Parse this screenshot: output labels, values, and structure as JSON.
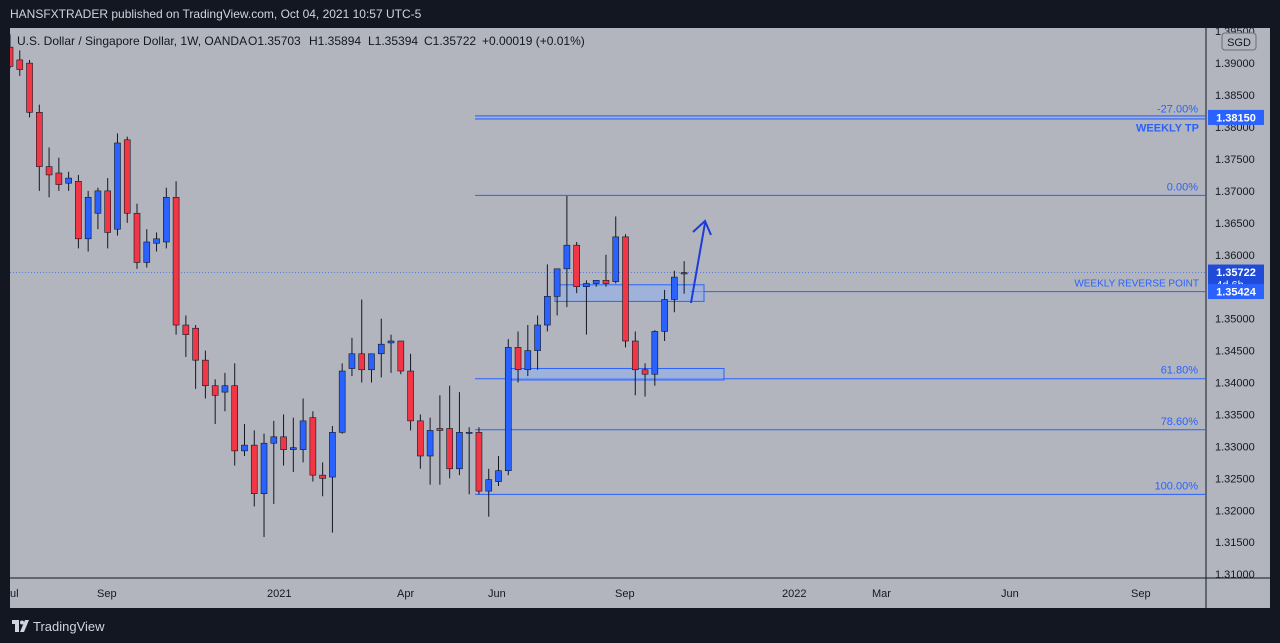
{
  "header": {
    "publisher_line": "HANSFXTRADER published on TradingView.com, Oct 04, 2021 10:57 UTC-5"
  },
  "legend": {
    "symbol": "U.S. Dollar / Singapore Dollar, 1W, OANDA",
    "open": "O1.35703",
    "high": "H1.35894",
    "low": "L1.35394",
    "close": "C1.35722",
    "change": "+0.00019 (+0.01%)"
  },
  "currency_button": "SGD",
  "footer": {
    "brand": "TradingView"
  },
  "colors": {
    "up": "#2962ff",
    "down": "#f23645",
    "line": "#2962ff",
    "pane_bg": "#b2b5be",
    "zone_fill": "#8fb0f0"
  },
  "chart_data": {
    "type": "candlestick",
    "title": "U.S. Dollar / Singapore Dollar, 1W, OANDA",
    "ylim": [
      1.3094,
      1.3955
    ],
    "y_ticks": [
      "1.39500",
      "1.39000",
      "1.38500",
      "1.38000",
      "1.37500",
      "1.37000",
      "1.36500",
      "1.36000",
      "1.35500",
      "1.35000",
      "1.34500",
      "1.34000",
      "1.33500",
      "1.33000",
      "1.32500",
      "1.32000",
      "1.31500",
      "1.31000"
    ],
    "x_ticks": [
      "ul",
      "Sep",
      "2021",
      "Apr",
      "Jun",
      "Sep",
      "2022",
      "Mar",
      "Jun",
      "Sep"
    ],
    "candles": [
      {
        "o": 1.3925,
        "h": 1.3945,
        "l": 1.3892,
        "c": 1.3895
      },
      {
        "o": 1.3905,
        "h": 1.392,
        "l": 1.388,
        "c": 1.389
      },
      {
        "o": 1.39,
        "h": 1.3905,
        "l": 1.3815,
        "c": 1.3823
      },
      {
        "o": 1.3823,
        "h": 1.3835,
        "l": 1.37,
        "c": 1.3738
      },
      {
        "o": 1.3738,
        "h": 1.3768,
        "l": 1.369,
        "c": 1.3725
      },
      {
        "o": 1.3728,
        "h": 1.3752,
        "l": 1.37,
        "c": 1.371
      },
      {
        "o": 1.3712,
        "h": 1.373,
        "l": 1.37,
        "c": 1.372
      },
      {
        "o": 1.3715,
        "h": 1.3725,
        "l": 1.361,
        "c": 1.3625
      },
      {
        "o": 1.3625,
        "h": 1.37,
        "l": 1.3605,
        "c": 1.369
      },
      {
        "o": 1.3665,
        "h": 1.3705,
        "l": 1.364,
        "c": 1.37
      },
      {
        "o": 1.37,
        "h": 1.372,
        "l": 1.361,
        "c": 1.3635
      },
      {
        "o": 1.364,
        "h": 1.379,
        "l": 1.363,
        "c": 1.3775
      },
      {
        "o": 1.378,
        "h": 1.3785,
        "l": 1.365,
        "c": 1.3665
      },
      {
        "o": 1.3665,
        "h": 1.368,
        "l": 1.3578,
        "c": 1.3588
      },
      {
        "o": 1.3588,
        "h": 1.364,
        "l": 1.358,
        "c": 1.362
      },
      {
        "o": 1.3618,
        "h": 1.3635,
        "l": 1.3605,
        "c": 1.3625
      },
      {
        "o": 1.362,
        "h": 1.3705,
        "l": 1.361,
        "c": 1.369
      },
      {
        "o": 1.369,
        "h": 1.3715,
        "l": 1.3475,
        "c": 1.349
      },
      {
        "o": 1.349,
        "h": 1.3505,
        "l": 1.344,
        "c": 1.3475
      },
      {
        "o": 1.3485,
        "h": 1.349,
        "l": 1.339,
        "c": 1.3435
      },
      {
        "o": 1.3435,
        "h": 1.345,
        "l": 1.3375,
        "c": 1.3395
      },
      {
        "o": 1.3395,
        "h": 1.3405,
        "l": 1.3335,
        "c": 1.338
      },
      {
        "o": 1.3385,
        "h": 1.3415,
        "l": 1.3355,
        "c": 1.3395
      },
      {
        "o": 1.3395,
        "h": 1.343,
        "l": 1.327,
        "c": 1.3293
      },
      {
        "o": 1.3293,
        "h": 1.3335,
        "l": 1.3285,
        "c": 1.3302
      },
      {
        "o": 1.3302,
        "h": 1.3325,
        "l": 1.3206,
        "c": 1.3226
      },
      {
        "o": 1.3226,
        "h": 1.332,
        "l": 1.3158,
        "c": 1.3305
      },
      {
        "o": 1.3305,
        "h": 1.334,
        "l": 1.321,
        "c": 1.3315
      },
      {
        "o": 1.3315,
        "h": 1.335,
        "l": 1.327,
        "c": 1.3295
      },
      {
        "o": 1.3295,
        "h": 1.3345,
        "l": 1.326,
        "c": 1.3298
      },
      {
        "o": 1.3295,
        "h": 1.3375,
        "l": 1.3275,
        "c": 1.334
      },
      {
        "o": 1.3345,
        "h": 1.3355,
        "l": 1.3245,
        "c": 1.3255
      },
      {
        "o": 1.3255,
        "h": 1.3275,
        "l": 1.3222,
        "c": 1.325
      },
      {
        "o": 1.3252,
        "h": 1.3332,
        "l": 1.3165,
        "c": 1.3322
      },
      {
        "o": 1.3322,
        "h": 1.343,
        "l": 1.332,
        "c": 1.3418
      },
      {
        "o": 1.3422,
        "h": 1.347,
        "l": 1.341,
        "c": 1.3445
      },
      {
        "o": 1.3445,
        "h": 1.353,
        "l": 1.34,
        "c": 1.342
      },
      {
        "o": 1.342,
        "h": 1.3445,
        "l": 1.34,
        "c": 1.3445
      },
      {
        "o": 1.3445,
        "h": 1.35,
        "l": 1.3408,
        "c": 1.346
      },
      {
        "o": 1.3462,
        "h": 1.3475,
        "l": 1.3415,
        "c": 1.3465
      },
      {
        "o": 1.3465,
        "h": 1.3465,
        "l": 1.3413,
        "c": 1.3418
      },
      {
        "o": 1.3418,
        "h": 1.3445,
        "l": 1.3325,
        "c": 1.334
      },
      {
        "o": 1.334,
        "h": 1.335,
        "l": 1.3265,
        "c": 1.3285
      },
      {
        "o": 1.3285,
        "h": 1.3345,
        "l": 1.324,
        "c": 1.3325
      },
      {
        "o": 1.3328,
        "h": 1.338,
        "l": 1.324,
        "c": 1.3325
      },
      {
        "o": 1.3328,
        "h": 1.3395,
        "l": 1.325,
        "c": 1.3265
      },
      {
        "o": 1.3265,
        "h": 1.3385,
        "l": 1.3255,
        "c": 1.3322
      },
      {
        "o": 1.3322,
        "h": 1.333,
        "l": 1.3225,
        "c": 1.3322
      },
      {
        "o": 1.3322,
        "h": 1.333,
        "l": 1.3225,
        "c": 1.323
      },
      {
        "o": 1.323,
        "h": 1.3265,
        "l": 1.319,
        "c": 1.3248
      },
      {
        "o": 1.3245,
        "h": 1.3285,
        "l": 1.3238,
        "c": 1.3262
      },
      {
        "o": 1.3262,
        "h": 1.3468,
        "l": 1.3255,
        "c": 1.3455
      },
      {
        "o": 1.3455,
        "h": 1.348,
        "l": 1.34,
        "c": 1.342
      },
      {
        "o": 1.342,
        "h": 1.349,
        "l": 1.341,
        "c": 1.345
      },
      {
        "o": 1.345,
        "h": 1.3505,
        "l": 1.342,
        "c": 1.349
      },
      {
        "o": 1.349,
        "h": 1.3585,
        "l": 1.348,
        "c": 1.3535
      },
      {
        "o": 1.3535,
        "h": 1.3578,
        "l": 1.3505,
        "c": 1.3578
      },
      {
        "o": 1.3578,
        "h": 1.3692,
        "l": 1.3518,
        "c": 1.3615
      },
      {
        "o": 1.3615,
        "h": 1.362,
        "l": 1.354,
        "c": 1.355
      },
      {
        "o": 1.355,
        "h": 1.356,
        "l": 1.3475,
        "c": 1.3555
      },
      {
        "o": 1.3555,
        "h": 1.356,
        "l": 1.355,
        "c": 1.356
      },
      {
        "o": 1.356,
        "h": 1.36,
        "l": 1.355,
        "c": 1.3555
      },
      {
        "o": 1.3558,
        "h": 1.366,
        "l": 1.3555,
        "c": 1.3628
      },
      {
        "o": 1.3628,
        "h": 1.3632,
        "l": 1.3455,
        "c": 1.3465
      },
      {
        "o": 1.3465,
        "h": 1.348,
        "l": 1.338,
        "c": 1.342
      },
      {
        "o": 1.342,
        "h": 1.343,
        "l": 1.3378,
        "c": 1.3413
      },
      {
        "o": 1.3413,
        "h": 1.3482,
        "l": 1.3395,
        "c": 1.348
      },
      {
        "o": 1.348,
        "h": 1.3545,
        "l": 1.3465,
        "c": 1.353
      },
      {
        "o": 1.353,
        "h": 1.3575,
        "l": 1.351,
        "c": 1.3565
      },
      {
        "o": 1.357,
        "h": 1.359,
        "l": 1.3539,
        "c": 1.3572
      }
    ],
    "lines": [
      {
        "label": "-27.00%",
        "value": 1.3815,
        "kind": "fib"
      },
      {
        "label": "0.00%",
        "value": 1.3693,
        "kind": "fib"
      },
      {
        "label": "61.80%",
        "value": 1.3406,
        "kind": "fib"
      },
      {
        "label": "78.60%",
        "value": 1.3326,
        "kind": "fib"
      },
      {
        "label": "100.00%",
        "value": 1.3225,
        "kind": "fib"
      }
    ],
    "annotations": [
      {
        "text": "WEEKLY TP",
        "value": 1.3815
      },
      {
        "text": "WEEKLY REVERSE POINT",
        "value": 1.35424
      }
    ],
    "zones": [
      {
        "from": 1.3527,
        "to": 1.3553
      },
      {
        "from": 1.3404,
        "to": 1.3422
      }
    ],
    "price_labels": [
      {
        "text": "1.38150",
        "value": 1.3815,
        "style": "line"
      },
      {
        "text": "1.35722",
        "value": 1.35722,
        "style": "current",
        "sub": "4d 6h"
      },
      {
        "text": "1.35424",
        "value": 1.35424,
        "style": "line"
      }
    ]
  }
}
